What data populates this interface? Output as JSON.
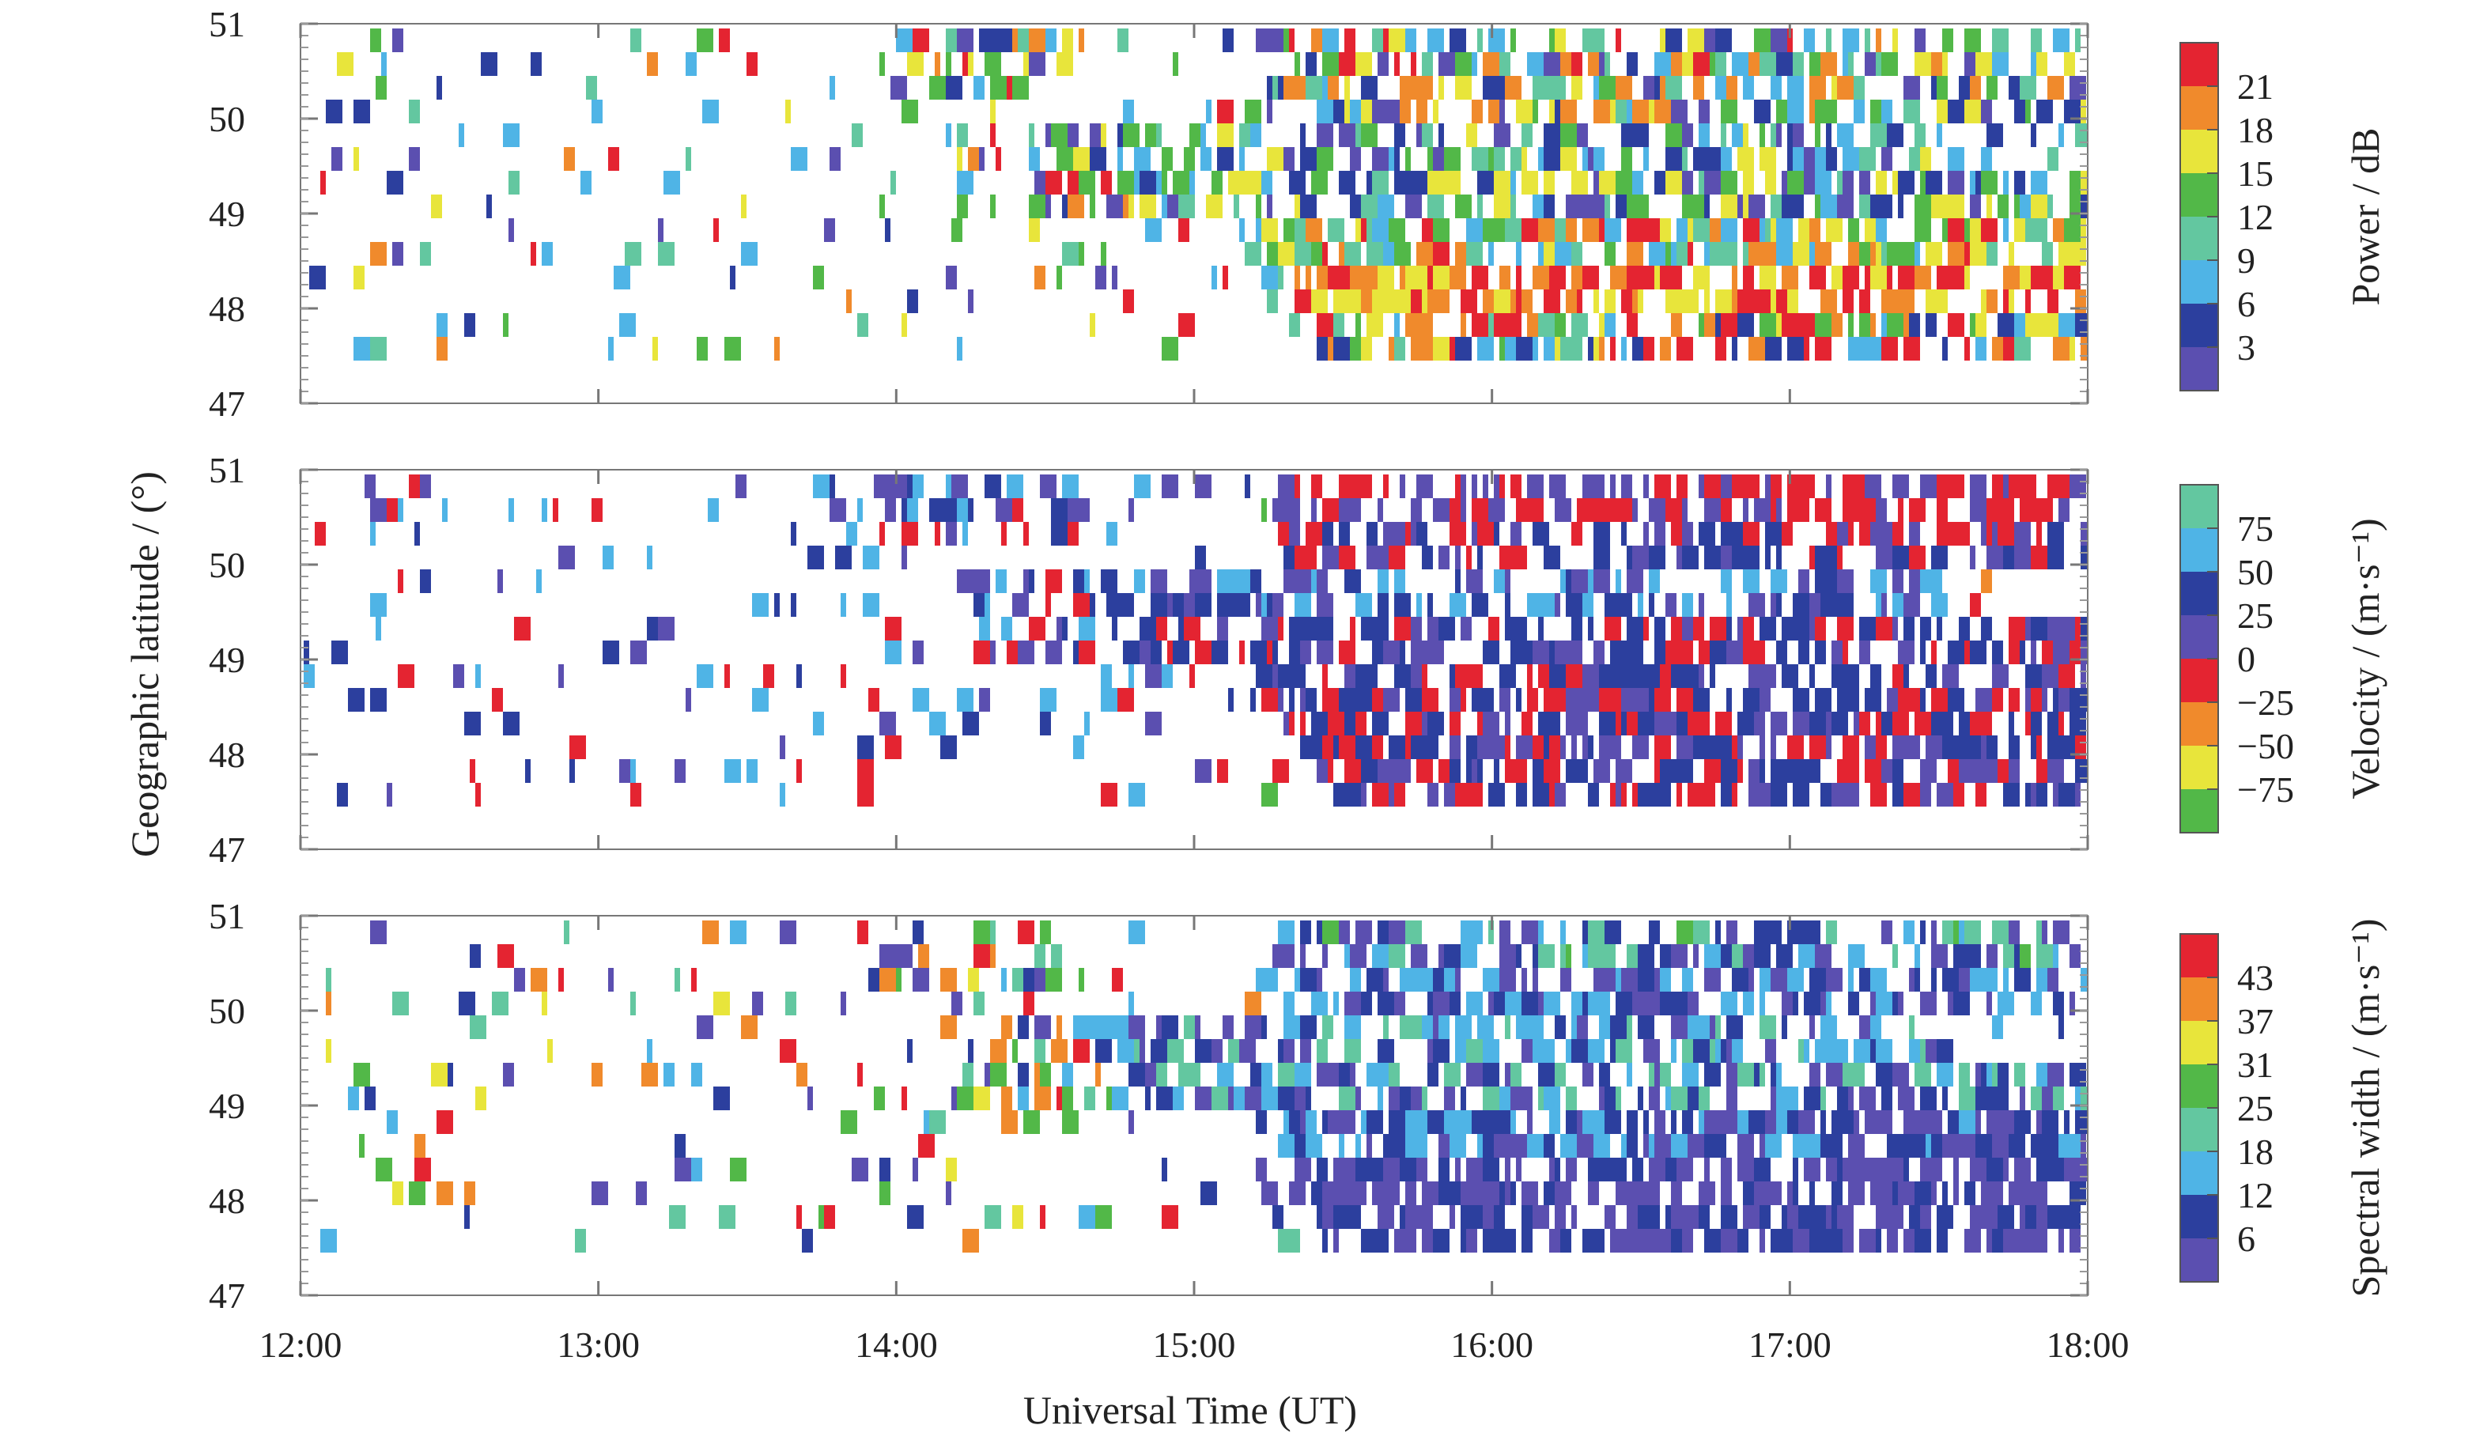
{
  "chart_data": {
    "type": "heatmap",
    "xlabel": "Universal Time (UT)",
    "ylabel": "Geographic latitude / (°)",
    "x_tick_labels": [
      "12:00",
      "13:00",
      "14:00",
      "15:00",
      "16:00",
      "17:00",
      "18:00"
    ],
    "xlim": [
      12,
      18
    ],
    "panels": [
      {
        "id": "power",
        "colorbar_label": "Power / dB",
        "colorbar_ticks": [
          "21",
          "18",
          "15",
          "12",
          "9",
          "6",
          "3"
        ],
        "ylim": [
          47,
          51
        ],
        "y_tick_labels": [
          "51",
          "50",
          "49",
          "48",
          "47"
        ],
        "colors": [
          "#5b4fb0",
          "#2c3f9e",
          "#4fb4e6",
          "#63c7a0",
          "#52b848",
          "#e8e53b",
          "#f08a2c",
          "#e42431"
        ],
        "scan": [
          {
            "lat": 50.75,
            "x0": 15.25,
            "x1": 18.0,
            "lo": 0,
            "hi": 7,
            "p": 0.5
          },
          {
            "lat": 50.25,
            "x0": 15.3,
            "x1": 18.0,
            "lo": 0,
            "hi": 6,
            "p": 0.45
          },
          {
            "lat": 49.75,
            "x0": 14.6,
            "x1": 17.5,
            "lo": 0,
            "hi": 5,
            "p": 0.45
          },
          {
            "lat": 49.25,
            "x0": 14.8,
            "x1": 18.0,
            "lo": 0,
            "hi": 5,
            "p": 0.55
          },
          {
            "lat": 48.75,
            "x0": 15.2,
            "x1": 18.0,
            "lo": 2,
            "hi": 7,
            "p": 0.65
          },
          {
            "lat": 48.25,
            "x0": 15.3,
            "x1": 18.0,
            "lo": 5,
            "hi": 7,
            "p": 0.6
          },
          {
            "lat": 47.75,
            "x0": 15.4,
            "x1": 18.0,
            "lo": 1,
            "hi": 7,
            "p": 0.55
          }
        ]
      },
      {
        "id": "velocity",
        "colorbar_label": "Velocity / (m·s⁻¹)",
        "colorbar_ticks": [
          "75",
          "50",
          "25",
          "0",
          "−25",
          "−50",
          "−75"
        ],
        "ylim": [
          47,
          51
        ],
        "y_tick_labels": [
          "51",
          "50",
          "49",
          "48",
          "47"
        ],
        "colors": [
          "#52b848",
          "#e8e53b",
          "#f08a2c",
          "#e42431",
          "#5b4fb0",
          "#2c3f9e",
          "#4fb4e6",
          "#63c7a0"
        ],
        "scan": [
          {
            "lat": 50.75,
            "x0": 15.25,
            "x1": 18.0,
            "lo": 3,
            "hi": 4,
            "p": 0.55
          },
          {
            "lat": 50.25,
            "x0": 15.3,
            "x1": 18.0,
            "lo": 3,
            "hi": 5,
            "p": 0.5
          },
          {
            "lat": 49.75,
            "x0": 14.6,
            "x1": 17.5,
            "lo": 4,
            "hi": 6,
            "p": 0.5
          },
          {
            "lat": 49.25,
            "x0": 14.8,
            "x1": 18.0,
            "lo": 3,
            "hi": 5,
            "p": 0.55
          },
          {
            "lat": 48.75,
            "x0": 15.2,
            "x1": 18.0,
            "lo": 3,
            "hi": 5,
            "p": 0.65
          },
          {
            "lat": 48.25,
            "x0": 15.3,
            "x1": 18.0,
            "lo": 3,
            "hi": 5,
            "p": 0.6
          },
          {
            "lat": 47.75,
            "x0": 15.4,
            "x1": 18.0,
            "lo": 3,
            "hi": 5,
            "p": 0.55
          }
        ]
      },
      {
        "id": "spectral-width",
        "colorbar_label": "Spectral width / (m·s⁻¹)",
        "colorbar_ticks": [
          "43",
          "37",
          "31",
          "25",
          "18",
          "12",
          "6"
        ],
        "ylim": [
          47,
          51
        ],
        "y_tick_labels": [
          "51",
          "50",
          "49",
          "48",
          "47"
        ],
        "colors": [
          "#5b4fb0",
          "#2c3f9e",
          "#4fb4e6",
          "#63c7a0",
          "#52b848",
          "#e8e53b",
          "#f08a2c",
          "#e42431"
        ],
        "scan": [
          {
            "lat": 50.75,
            "x0": 15.25,
            "x1": 18.0,
            "lo": 0,
            "hi": 4,
            "p": 0.5
          },
          {
            "lat": 50.25,
            "x0": 15.3,
            "x1": 18.0,
            "lo": 0,
            "hi": 2,
            "p": 0.5
          },
          {
            "lat": 49.75,
            "x0": 14.6,
            "x1": 17.5,
            "lo": 0,
            "hi": 3,
            "p": 0.5
          },
          {
            "lat": 49.25,
            "x0": 14.8,
            "x1": 18.0,
            "lo": 0,
            "hi": 3,
            "p": 0.55
          },
          {
            "lat": 48.75,
            "x0": 15.2,
            "x1": 18.0,
            "lo": 0,
            "hi": 2,
            "p": 0.65
          },
          {
            "lat": 48.25,
            "x0": 15.3,
            "x1": 18.0,
            "lo": 0,
            "hi": 1,
            "p": 0.6
          },
          {
            "lat": 47.75,
            "x0": 15.4,
            "x1": 18.0,
            "lo": 0,
            "hi": 1,
            "p": 0.55
          }
        ]
      }
    ],
    "grid": false
  }
}
